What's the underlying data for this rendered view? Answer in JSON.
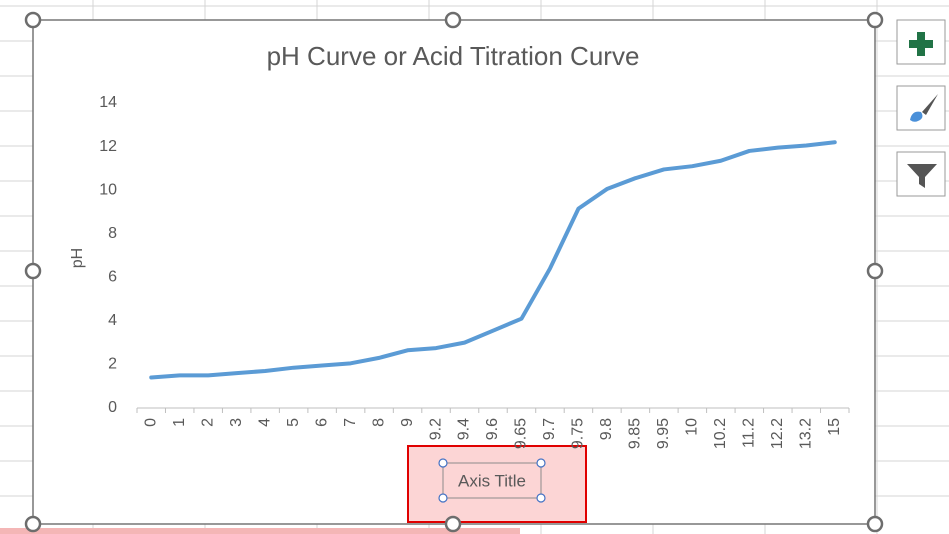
{
  "chart_data": {
    "type": "line",
    "title": "pH Curve or Acid Titration Curve",
    "x_label": "Axis Title",
    "y_label": "pH",
    "categories": [
      "0",
      "1",
      "2",
      "3",
      "4",
      "5",
      "6",
      "7",
      "8",
      "9",
      "9.2",
      "9.4",
      "9.6",
      "9.65",
      "9.7",
      "9.75",
      "9.8",
      "9.85",
      "9.95",
      "10",
      "10.2",
      "11.2",
      "12.2",
      "13.2",
      "15"
    ],
    "series": [
      {
        "name": "pH",
        "color": "#5b9bd5",
        "values": [
          1.4,
          1.5,
          1.5,
          1.6,
          1.7,
          1.85,
          1.95,
          2.05,
          2.3,
          2.65,
          2.75,
          3.0,
          3.55,
          4.1,
          6.4,
          9.15,
          10.05,
          10.55,
          10.95,
          11.1,
          11.35,
          11.8,
          11.95,
          12.05,
          12.2
        ]
      }
    ],
    "ylim": [
      0,
      14
    ],
    "yticks": [
      0,
      2,
      4,
      6,
      8,
      10,
      12,
      14
    ],
    "grid": false,
    "legend": false
  }
}
